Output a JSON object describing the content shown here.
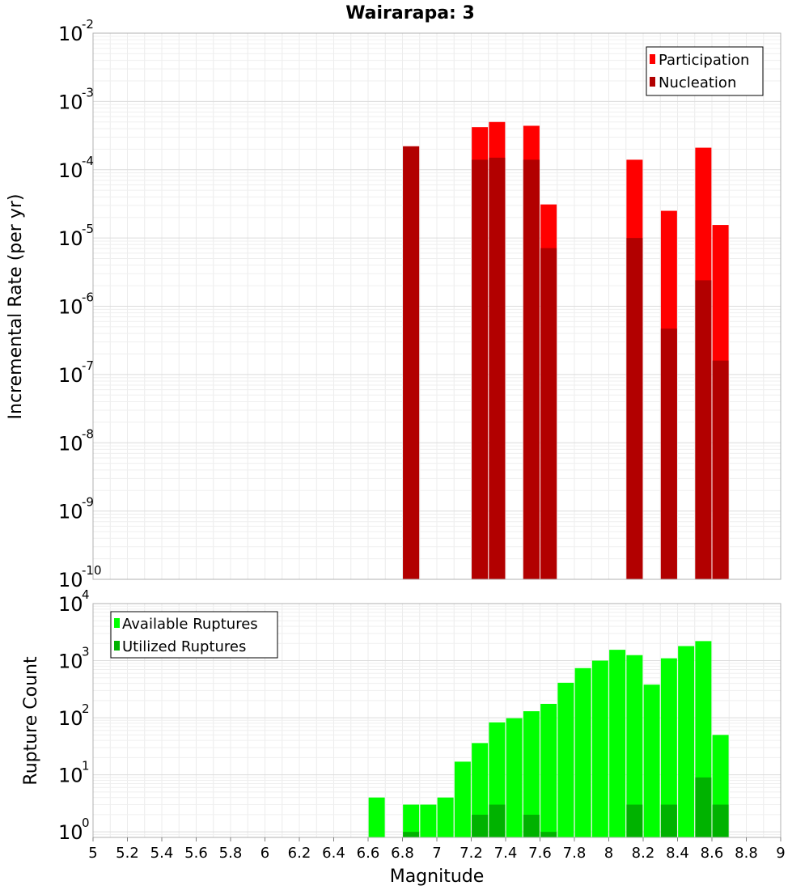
{
  "chart_data": [
    {
      "type": "bar",
      "title": "Wairarapa: 3",
      "ylabel": "Incremental Rate (per yr)",
      "yscale": "log",
      "ylim": [
        1e-10,
        0.01
      ],
      "xlim": [
        5,
        9
      ],
      "grid": true,
      "legend_position": "top-right",
      "x": [
        6.85,
        7.25,
        7.35,
        7.55,
        7.65,
        8.15,
        8.35,
        8.55,
        8.65
      ],
      "series": [
        {
          "name": "Participation",
          "color": "#ff0000",
          "values": [
            0.00022,
            0.00042,
            0.0005,
            0.00044,
            3.1e-05,
            0.00014,
            2.5e-05,
            0.00021,
            1.55e-05
          ]
        },
        {
          "name": "Nucleation",
          "color": "#b20000",
          "values": [
            0.00022,
            0.00014,
            0.00015,
            0.00014,
            7.1e-06,
            1e-05,
            4.7e-07,
            2.4e-06,
            1.6e-07
          ]
        }
      ],
      "y_ticks": [
        {
          "base": "10",
          "exp": "-10"
        },
        {
          "base": "10",
          "exp": "-9"
        },
        {
          "base": "10",
          "exp": "-8"
        },
        {
          "base": "10",
          "exp": "-7"
        },
        {
          "base": "10",
          "exp": "-6"
        },
        {
          "base": "10",
          "exp": "-5"
        },
        {
          "base": "10",
          "exp": "-4"
        },
        {
          "base": "10",
          "exp": "-3"
        },
        {
          "base": "10",
          "exp": "-2"
        }
      ]
    },
    {
      "type": "bar",
      "ylabel": "Rupture Count",
      "xlabel": "Magnitude",
      "yscale": "log",
      "ylim": [
        0.8,
        10000
      ],
      "xlim": [
        5,
        9
      ],
      "grid": true,
      "legend_position": "top-left",
      "x": [
        6.65,
        6.85,
        6.95,
        7.05,
        7.15,
        7.25,
        7.35,
        7.45,
        7.55,
        7.65,
        7.75,
        7.85,
        7.95,
        8.05,
        8.15,
        8.25,
        8.35,
        8.45,
        8.55,
        8.65
      ],
      "series": [
        {
          "name": "Available Ruptures",
          "color": "#00ff00",
          "values": [
            4,
            3,
            3,
            4,
            17,
            36,
            83,
            98,
            130,
            175,
            410,
            740,
            1000,
            1550,
            1250,
            380,
            1100,
            1800,
            2200,
            50
          ]
        },
        {
          "name": "Utilized Ruptures",
          "color": "#00b200",
          "values": [
            0,
            1,
            0,
            0,
            0,
            2,
            3,
            0,
            2,
            1,
            0,
            0,
            0,
            0,
            3,
            0,
            3,
            0,
            9,
            3
          ]
        }
      ],
      "y_ticks": [
        {
          "base": "10",
          "exp": "0"
        },
        {
          "base": "10",
          "exp": "1"
        },
        {
          "base": "10",
          "exp": "2"
        },
        {
          "base": "10",
          "exp": "3"
        },
        {
          "base": "10",
          "exp": "4"
        }
      ],
      "x_ticks": [
        "5",
        "5.2",
        "5.4",
        "5.6",
        "5.8",
        "6",
        "6.2",
        "6.4",
        "6.6",
        "6.8",
        "7",
        "7.2",
        "7.4",
        "7.6",
        "7.8",
        "8",
        "8.2",
        "8.4",
        "8.6",
        "8.8",
        "9"
      ]
    }
  ]
}
